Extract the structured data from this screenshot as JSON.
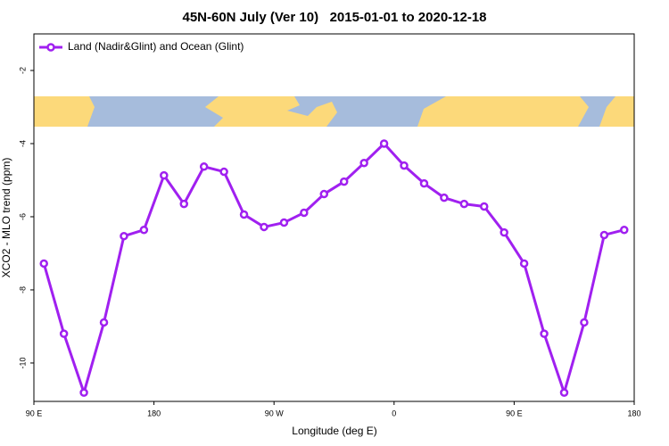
{
  "chart_data": {
    "type": "line",
    "title": "45N-60N July (Ver 10)   2015-01-01 to 2020-12-18",
    "x_label": "Longitude (deg E)",
    "y_label": "XCO2 - MLO trend (ppm)",
    "x": [
      97.5,
      112.5,
      127.5,
      142.5,
      157.5,
      172.5,
      187.5,
      202.5,
      217.5,
      232.5,
      247.5,
      262.5,
      277.5,
      292.5,
      307.5,
      322.5,
      337.5,
      352.5,
      367.5,
      382.5,
      397.5,
      412.5,
      427.5,
      442.5,
      457.5,
      472.5,
      487.5,
      502.5,
      517.5,
      532.5
    ],
    "series": [
      {
        "name": "Land (Nadir&Glint) and Ocean (Glint)",
        "color": "#a020f0",
        "values": [
          -7.28,
          -9.2,
          -10.81,
          -8.89,
          -6.53,
          -6.36,
          -4.87,
          -5.65,
          -4.63,
          -4.77,
          -5.94,
          -6.28,
          -6.16,
          -5.89,
          -5.38,
          -5.04,
          -4.53,
          -4.0,
          -4.6,
          -5.09,
          -5.48,
          -5.65,
          -5.72,
          -6.43,
          -7.28,
          -9.2,
          -10.81,
          -8.89,
          -6.5,
          -6.36
        ]
      }
    ],
    "xlim": [
      90,
      540
    ],
    "ylim": [
      -11.05,
      -1.0
    ],
    "xticks": [
      {
        "value": 90,
        "label": "90 E"
      },
      {
        "value": 180,
        "label": "180"
      },
      {
        "value": 270,
        "label": "90 W"
      },
      {
        "value": 360,
        "label": "0"
      },
      {
        "value": 450,
        "label": "90 E"
      },
      {
        "value": 540,
        "label": "180"
      }
    ],
    "yticks": [
      -10,
      -8,
      -6,
      -4,
      -2
    ],
    "legend": "top-left"
  }
}
